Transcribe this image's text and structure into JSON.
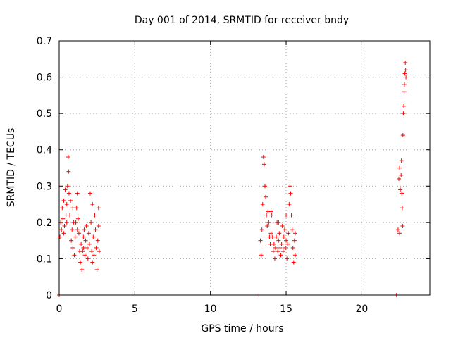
{
  "chart_data": {
    "type": "scatter",
    "title": "Day 001 of 2014, SRMTID for receiver bndy",
    "xlabel": "GPS time / hours",
    "ylabel": "SRMTID / TECUs",
    "xlim": [
      0,
      24.5
    ],
    "ylim": [
      0,
      0.7
    ],
    "xticks": [
      0,
      5,
      10,
      15,
      20
    ],
    "yticks": [
      0,
      0.1,
      0.2,
      0.3,
      0.4,
      0.5,
      0.6,
      0.7
    ],
    "ytick_labels": [
      "0",
      "0.1",
      "0.2",
      "0.3",
      "0.4",
      "0.5",
      "0.6",
      "0.7"
    ],
    "grid": true,
    "marker": "+",
    "color": "#ff0000",
    "series": [
      {
        "name": "SRMTID",
        "points": [
          [
            0.05,
            0.16
          ],
          [
            0.1,
            0.2
          ],
          [
            0.15,
            0.18
          ],
          [
            0.2,
            0.24
          ],
          [
            0.25,
            0.21
          ],
          [
            0.3,
            0.26
          ],
          [
            0.35,
            0.19
          ],
          [
            0.4,
            0.29
          ],
          [
            0.45,
            0.22
          ],
          [
            0.5,
            0.25
          ],
          [
            0.55,
            0.3
          ],
          [
            0.6,
            0.38
          ],
          [
            0.62,
            0.34
          ],
          [
            0.65,
            0.28
          ],
          [
            0.7,
            0.22
          ],
          [
            0.75,
            0.26
          ],
          [
            0.8,
            0.15
          ],
          [
            0.85,
            0.18
          ],
          [
            0.9,
            0.13
          ],
          [
            0.95,
            0.2
          ],
          [
            1.0,
            0.11
          ],
          [
            1.05,
            0.16
          ],
          [
            1.1,
            0.2
          ],
          [
            1.15,
            0.24
          ],
          [
            1.2,
            0.28
          ],
          [
            1.25,
            0.21
          ],
          [
            1.3,
            0.17
          ],
          [
            1.35,
            0.12
          ],
          [
            1.4,
            0.09
          ],
          [
            1.45,
            0.14
          ],
          [
            1.5,
            0.07
          ],
          [
            1.55,
            0.12
          ],
          [
            1.6,
            0.16
          ],
          [
            1.65,
            0.18
          ],
          [
            1.7,
            0.11
          ],
          [
            1.75,
            0.15
          ],
          [
            1.8,
            0.19
          ],
          [
            1.85,
            0.13
          ],
          [
            1.9,
            0.1
          ],
          [
            1.95,
            0.17
          ],
          [
            2.0,
            0.14
          ],
          [
            2.05,
            0.28
          ],
          [
            2.1,
            0.2
          ],
          [
            2.15,
            0.12
          ],
          [
            2.2,
            0.09
          ],
          [
            2.25,
            0.16
          ],
          [
            2.3,
            0.11
          ],
          [
            2.35,
            0.22
          ],
          [
            2.4,
            0.18
          ],
          [
            2.45,
            0.13
          ],
          [
            2.5,
            0.07
          ],
          [
            2.55,
            0.15
          ],
          [
            2.6,
            0.19
          ],
          [
            2.65,
            0.12
          ],
          [
            0.3,
            0.17
          ],
          [
            0.5,
            0.2
          ],
          [
            0.9,
            0.24
          ],
          [
            1.2,
            0.18
          ],
          [
            1.6,
            0.13
          ],
          [
            2.2,
            0.25
          ],
          [
            0.0,
            0.0
          ],
          [
            2.6,
            0.24
          ],
          [
            13.2,
            0.0
          ],
          [
            13.3,
            0.15
          ],
          [
            13.35,
            0.11
          ],
          [
            13.4,
            0.18
          ],
          [
            13.45,
            0.25
          ],
          [
            13.5,
            0.38
          ],
          [
            13.55,
            0.36
          ],
          [
            13.6,
            0.3
          ],
          [
            13.65,
            0.27
          ],
          [
            13.7,
            0.22
          ],
          [
            13.75,
            0.19
          ],
          [
            13.8,
            0.23
          ],
          [
            13.85,
            0.2
          ],
          [
            13.9,
            0.16
          ],
          [
            13.95,
            0.14
          ],
          [
            14.0,
            0.17
          ],
          [
            14.05,
            0.22
          ],
          [
            14.1,
            0.16
          ],
          [
            14.15,
            0.12
          ],
          [
            14.2,
            0.14
          ],
          [
            14.25,
            0.1
          ],
          [
            14.3,
            0.13
          ],
          [
            14.35,
            0.16
          ],
          [
            14.4,
            0.2
          ],
          [
            14.45,
            0.12
          ],
          [
            14.5,
            0.15
          ],
          [
            14.55,
            0.17
          ],
          [
            14.6,
            0.13
          ],
          [
            14.65,
            0.11
          ],
          [
            14.7,
            0.14
          ],
          [
            14.75,
            0.19
          ],
          [
            14.8,
            0.12
          ],
          [
            14.85,
            0.16
          ],
          [
            14.9,
            0.18
          ],
          [
            14.95,
            0.13
          ],
          [
            15.0,
            0.15
          ],
          [
            15.05,
            0.1
          ],
          [
            15.1,
            0.14
          ],
          [
            15.15,
            0.17
          ],
          [
            15.2,
            0.25
          ],
          [
            15.25,
            0.3
          ],
          [
            15.3,
            0.28
          ],
          [
            15.35,
            0.22
          ],
          [
            15.4,
            0.18
          ],
          [
            15.45,
            0.13
          ],
          [
            15.5,
            0.09
          ],
          [
            15.55,
            0.15
          ],
          [
            15.6,
            0.11
          ],
          [
            15.6,
            0.17
          ],
          [
            14.0,
            0.23
          ],
          [
            14.5,
            0.2
          ],
          [
            15.0,
            0.22
          ],
          [
            22.3,
            0.0
          ],
          [
            22.4,
            0.18
          ],
          [
            22.45,
            0.32
          ],
          [
            22.5,
            0.35
          ],
          [
            22.55,
            0.29
          ],
          [
            22.6,
            0.33
          ],
          [
            22.62,
            0.37
          ],
          [
            22.65,
            0.28
          ],
          [
            22.68,
            0.24
          ],
          [
            22.7,
            0.19
          ],
          [
            22.72,
            0.44
          ],
          [
            22.75,
            0.5
          ],
          [
            22.78,
            0.52
          ],
          [
            22.8,
            0.56
          ],
          [
            22.82,
            0.58
          ],
          [
            22.85,
            0.61
          ],
          [
            22.88,
            0.64
          ],
          [
            22.9,
            0.62
          ],
          [
            22.92,
            0.6
          ],
          [
            22.5,
            0.17
          ]
        ]
      }
    ]
  }
}
